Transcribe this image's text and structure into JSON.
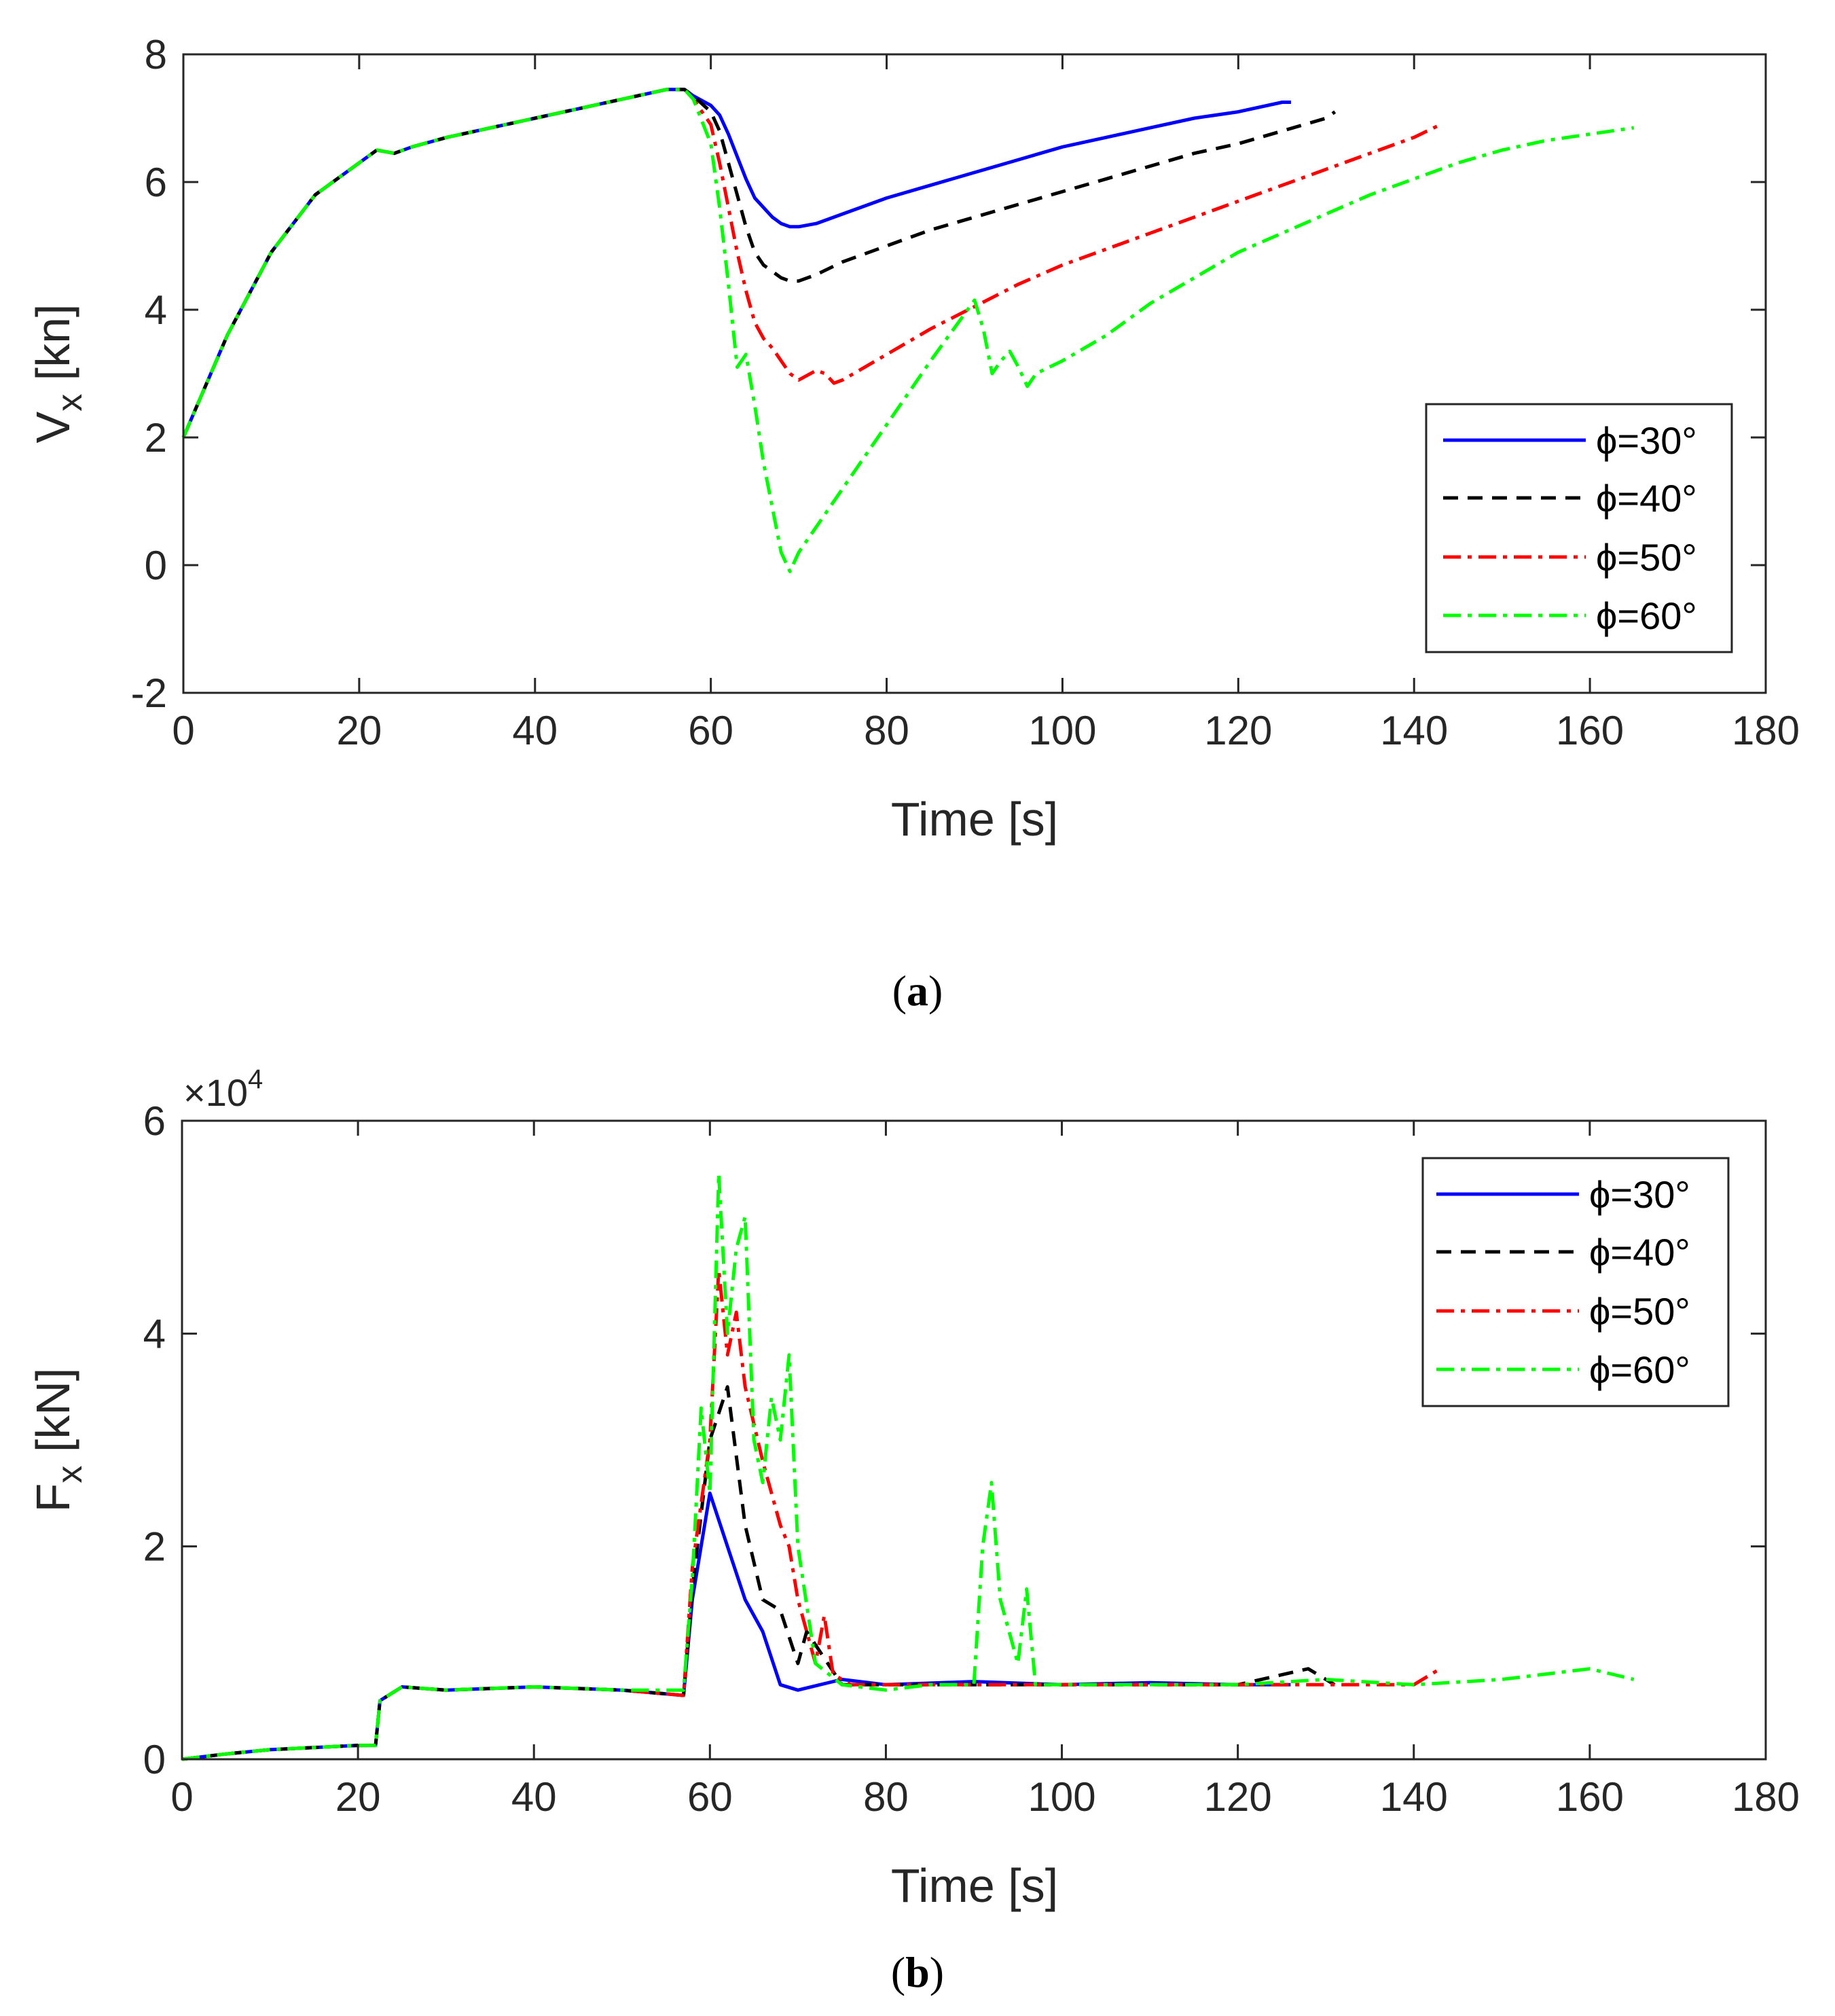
{
  "colors": {
    "s30": "#0000ff",
    "s40": "#000000",
    "s50": "#ff0000",
    "s60": "#00ff00",
    "axis": "#262626"
  },
  "chart_data": [
    {
      "type": "line",
      "panel": "a",
      "caption_letter": "a",
      "xlabel": "Time [s]",
      "ylabel_main": "V",
      "ylabel_sub": "x",
      "ylabel_unit": " [kn]",
      "xlim": [
        0,
        180
      ],
      "ylim": [
        -2,
        8
      ],
      "xticks": [
        0,
        20,
        40,
        60,
        80,
        100,
        120,
        140,
        160,
        180
      ],
      "yticks": [
        -2,
        0,
        2,
        4,
        6,
        8
      ],
      "legend_position": "lower-right",
      "series": [
        {
          "name": "ϕ=30°",
          "color": "#0000ff",
          "dash": "solid",
          "x": [
            0,
            5,
            10,
            15,
            20,
            22,
            24,
            26,
            30,
            35,
            40,
            45,
            50,
            55,
            57,
            58,
            60,
            61,
            62,
            63,
            64,
            65,
            66,
            67,
            68,
            69,
            70,
            72,
            75,
            80,
            85,
            90,
            95,
            100,
            105,
            110,
            115,
            120,
            125,
            126
          ],
          "y": [
            2,
            3.6,
            4.9,
            5.8,
            6.3,
            6.5,
            6.45,
            6.55,
            6.7,
            6.85,
            7.0,
            7.15,
            7.3,
            7.45,
            7.45,
            7.35,
            7.2,
            7.05,
            6.75,
            6.4,
            6.05,
            5.75,
            5.6,
            5.45,
            5.35,
            5.3,
            5.3,
            5.35,
            5.5,
            5.75,
            5.95,
            6.15,
            6.35,
            6.55,
            6.7,
            6.85,
            7.0,
            7.1,
            7.25,
            7.25
          ]
        },
        {
          "name": "ϕ=40°",
          "color": "#000000",
          "dash": "dashed",
          "x": [
            0,
            5,
            10,
            15,
            20,
            22,
            24,
            26,
            30,
            35,
            40,
            45,
            50,
            55,
            57,
            58,
            60,
            61,
            62,
            63,
            64,
            65,
            66,
            67,
            68,
            69,
            70,
            72,
            75,
            80,
            85,
            90,
            95,
            100,
            105,
            110,
            115,
            120,
            125,
            130,
            131
          ],
          "y": [
            2,
            3.6,
            4.9,
            5.8,
            6.3,
            6.5,
            6.45,
            6.55,
            6.7,
            6.85,
            7.0,
            7.15,
            7.3,
            7.45,
            7.45,
            7.35,
            7.1,
            6.8,
            6.3,
            5.8,
            5.3,
            4.9,
            4.7,
            4.6,
            4.5,
            4.45,
            4.45,
            4.55,
            4.75,
            5.0,
            5.25,
            5.45,
            5.65,
            5.85,
            6.05,
            6.25,
            6.45,
            6.6,
            6.8,
            7.0,
            7.1
          ]
        },
        {
          "name": "ϕ=50°",
          "color": "#ff0000",
          "dash": "dashdot",
          "x": [
            0,
            5,
            10,
            15,
            20,
            22,
            24,
            26,
            30,
            35,
            40,
            45,
            50,
            55,
            57,
            58,
            60,
            61,
            62,
            63,
            64,
            65,
            66,
            67,
            68,
            69,
            70,
            72,
            73,
            74,
            75,
            80,
            85,
            90,
            95,
            100,
            105,
            110,
            115,
            120,
            125,
            130,
            135,
            140,
            143
          ],
          "y": [
            2,
            3.6,
            4.9,
            5.8,
            6.3,
            6.5,
            6.45,
            6.55,
            6.7,
            6.85,
            7.0,
            7.15,
            7.3,
            7.45,
            7.45,
            7.3,
            6.9,
            6.3,
            5.6,
            4.9,
            4.3,
            3.8,
            3.55,
            3.4,
            3.2,
            3.0,
            2.9,
            3.05,
            3.0,
            2.85,
            2.9,
            3.3,
            3.7,
            4.05,
            4.4,
            4.7,
            4.95,
            5.2,
            5.45,
            5.7,
            5.95,
            6.2,
            6.45,
            6.7,
            6.9
          ]
        },
        {
          "name": "ϕ=60°",
          "color": "#00ff00",
          "dash": "dashdot",
          "x": [
            0,
            5,
            10,
            15,
            20,
            22,
            24,
            26,
            30,
            35,
            40,
            45,
            50,
            55,
            57,
            58,
            60,
            61,
            62,
            63,
            64,
            65,
            66,
            67,
            68,
            69,
            70,
            75,
            80,
            85,
            90,
            91,
            92,
            93,
            94,
            95,
            96,
            97,
            100,
            105,
            110,
            115,
            120,
            125,
            130,
            135,
            140,
            145,
            150,
            155,
            160,
            165
          ],
          "y": [
            2,
            3.6,
            4.9,
            5.8,
            6.3,
            6.5,
            6.45,
            6.55,
            6.7,
            6.85,
            7.0,
            7.15,
            7.3,
            7.45,
            7.45,
            7.3,
            6.6,
            5.6,
            4.4,
            3.1,
            3.3,
            2.5,
            1.6,
            0.9,
            0.2,
            -0.1,
            0.2,
            1.2,
            2.2,
            3.2,
            4.15,
            3.7,
            3.0,
            3.2,
            3.35,
            3.1,
            2.8,
            3.0,
            3.2,
            3.6,
            4.1,
            4.5,
            4.9,
            5.2,
            5.5,
            5.8,
            6.05,
            6.3,
            6.5,
            6.65,
            6.75,
            6.85
          ]
        }
      ]
    },
    {
      "type": "line",
      "panel": "b",
      "caption_letter": "b",
      "xlabel": "Time [s]",
      "ylabel_main": "F",
      "ylabel_sub": "x",
      "ylabel_unit": " [kN]",
      "y_multiplier": "×10",
      "y_multiplier_exp": "4",
      "xlim": [
        0,
        180
      ],
      "ylim": [
        0,
        60000
      ],
      "xticks": [
        0,
        20,
        40,
        60,
        80,
        100,
        120,
        140,
        160,
        180
      ],
      "yticks": [
        0,
        20000,
        40000,
        60000
      ],
      "ytick_labels": [
        "0",
        "2",
        "4",
        "6"
      ],
      "legend_position": "top-right",
      "series": [
        {
          "name": "ϕ=30°",
          "color": "#0000ff",
          "dash": "solid",
          "x": [
            0,
            5,
            10,
            15,
            20,
            22,
            22.5,
            25,
            30,
            40,
            50,
            57,
            58,
            60,
            62,
            64,
            66,
            68,
            70,
            75,
            80,
            90,
            100,
            110,
            120,
            126
          ],
          "y": [
            0,
            500,
            900,
            1100,
            1300,
            1300,
            5500,
            6800,
            6500,
            6800,
            6500,
            6000,
            15000,
            25000,
            20000,
            15000,
            12000,
            7000,
            6500,
            7500,
            7000,
            7300,
            7000,
            7200,
            7000,
            7000
          ]
        },
        {
          "name": "ϕ=40°",
          "color": "#000000",
          "dash": "dashed",
          "x": [
            0,
            5,
            10,
            15,
            20,
            22,
            22.5,
            25,
            30,
            40,
            50,
            57,
            58,
            60,
            62,
            64,
            66,
            68,
            70,
            71,
            75,
            80,
            90,
            100,
            110,
            120,
            128,
            131
          ],
          "y": [
            0,
            500,
            900,
            1100,
            1300,
            1300,
            5500,
            6800,
            6500,
            6800,
            6500,
            6000,
            16000,
            30000,
            35000,
            22000,
            15000,
            14000,
            9000,
            12000,
            7000,
            7000,
            7000,
            7000,
            7000,
            7000,
            8500,
            7000
          ]
        },
        {
          "name": "ϕ=50°",
          "color": "#ff0000",
          "dash": "dashdot",
          "x": [
            0,
            5,
            10,
            15,
            20,
            22,
            22.5,
            25,
            30,
            40,
            50,
            57,
            58,
            60,
            61,
            62,
            63,
            64,
            66,
            68,
            69,
            70,
            72,
            73,
            74,
            76,
            80,
            90,
            100,
            110,
            120,
            130,
            140,
            143
          ],
          "y": [
            0,
            500,
            900,
            1100,
            1300,
            1300,
            5500,
            6800,
            6500,
            6800,
            6500,
            6000,
            18000,
            30000,
            46000,
            38000,
            42000,
            35000,
            28000,
            22000,
            20000,
            15000,
            9000,
            13500,
            8000,
            7000,
            7000,
            7000,
            7000,
            7000,
            7000,
            7000,
            7000,
            8500
          ]
        },
        {
          "name": "ϕ=60°",
          "color": "#00ff00",
          "dash": "dashdot",
          "x": [
            0,
            5,
            10,
            15,
            20,
            22,
            22.5,
            25,
            30,
            40,
            50,
            57,
            58,
            59,
            60,
            61,
            62,
            63,
            64,
            65,
            66,
            67,
            68,
            69,
            70,
            72,
            75,
            80,
            85,
            90,
            91,
            92,
            93,
            95,
            96,
            97,
            100,
            110,
            120,
            130,
            140,
            150,
            160,
            165
          ],
          "y": [
            0,
            500,
            900,
            1100,
            1300,
            1300,
            5500,
            6800,
            6500,
            6800,
            6500,
            6500,
            17000,
            33000,
            25000,
            55000,
            40000,
            48000,
            51000,
            30000,
            26000,
            34000,
            30000,
            38000,
            20000,
            9000,
            7000,
            6500,
            7000,
            7000,
            20000,
            26000,
            15000,
            9000,
            16000,
            7000,
            7000,
            7000,
            7000,
            7500,
            7000,
            7500,
            8500,
            7500
          ]
        }
      ]
    }
  ]
}
